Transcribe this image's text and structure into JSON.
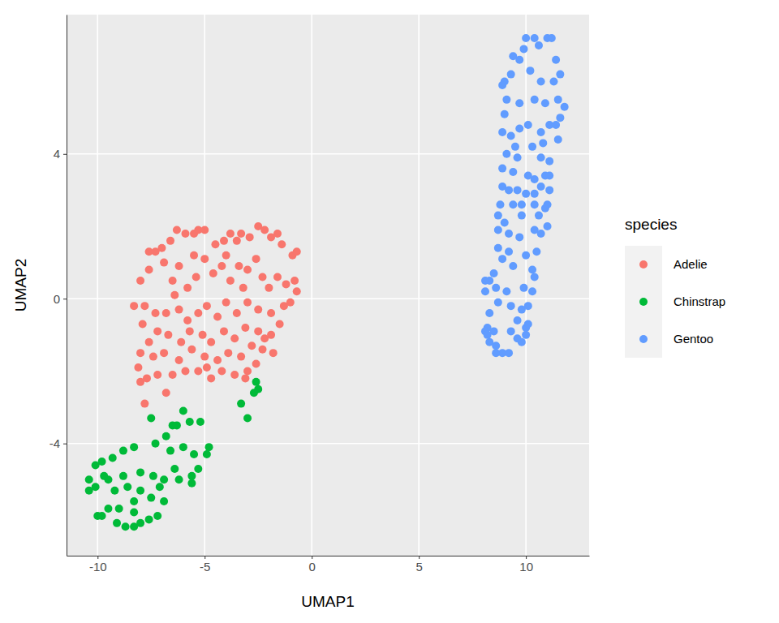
{
  "chart_data": {
    "type": "scatter",
    "x_label": "UMAP1",
    "y_label": "UMAP2",
    "legend_title": "species",
    "legend": "right",
    "grid": true,
    "marker": "circle",
    "xlim": [
      -11.45,
      12.95
    ],
    "ylim": [
      -7.1,
      7.85
    ],
    "xticks": [
      -10,
      -5,
      0,
      5,
      10
    ],
    "yticks": [
      -4,
      0,
      4
    ],
    "series": [
      {
        "name": "Adelie",
        "color": "#F8766D",
        "x": [
          -7.6,
          -7.3,
          -7,
          -6.6,
          -6.3,
          -5.9,
          -5.5,
          -5.3,
          -5,
          -4.5,
          -4.1,
          -3.8,
          -3.5,
          -3.3,
          -2.9,
          -2.5,
          -2.2,
          -1.9,
          -1.6,
          -1.4,
          -0.9,
          -0.7,
          -8,
          -7.8,
          -8.3,
          -7.6,
          -6.9,
          -6.5,
          -6.2,
          -5.8,
          -5.4,
          -5,
          -4.6,
          -4.2,
          -3.8,
          -3.4,
          -3,
          -2.6,
          -2.3,
          -2,
          -1.6,
          -1.2,
          -0.8,
          -0.7,
          -1.3,
          -1.9,
          -2.5,
          -3,
          -3.5,
          -4,
          -4.4,
          -4.9,
          -5.3,
          -5.8,
          -6.2,
          -6.8,
          -7.3,
          -7.9,
          -7.6,
          -7.2,
          -6.7,
          -6.1,
          -5.7,
          -5.1,
          -4.7,
          -4.1,
          -3.6,
          -3.1,
          -2.5,
          -1.9,
          -1.5,
          -1.8,
          -2.3,
          -2.8,
          -3.3,
          -3.9,
          -4.4,
          -5,
          -5.6,
          -6.2,
          -6.9,
          -7.4,
          -8,
          -8.1,
          -7.7,
          -7.2,
          -6.5,
          -5.9,
          -5.3,
          -4.7,
          -4.2,
          -3.6,
          -3,
          -2.6,
          -7.8,
          -8,
          -6.8,
          -4.9,
          -3.1,
          -2.2,
          -1,
          -5.5,
          -4,
          -6.4,
          -3.2
        ],
        "values": [
          1.3,
          1.3,
          1.4,
          1.6,
          1.9,
          1.8,
          1.8,
          1.9,
          1.9,
          1.5,
          1.6,
          1.8,
          1.6,
          1.8,
          1.7,
          2,
          1.9,
          1.7,
          1.8,
          1.5,
          1.2,
          1.3,
          0.5,
          -0.2,
          -0.2,
          0.8,
          1,
          0.5,
          0.9,
          0.3,
          0.6,
          1.1,
          0.7,
          0.9,
          0.5,
          0.9,
          0.8,
          1.1,
          0.6,
          0.3,
          0.6,
          0.4,
          0.5,
          0.2,
          -0.2,
          -0.4,
          -0.3,
          -0.1,
          -0.4,
          -0.1,
          -0.5,
          -0.2,
          -0.4,
          -0.6,
          -0.3,
          -0.4,
          -0.4,
          -0.7,
          -1.2,
          -0.9,
          -1,
          -1.2,
          -0.9,
          -1,
          -1.2,
          -0.9,
          -1.1,
          -0.8,
          -0.9,
          -1,
          -0.7,
          -1.5,
          -1.4,
          -1.3,
          -1.6,
          -1.5,
          -1.7,
          -1.6,
          -1.4,
          -1.7,
          -1.5,
          -1.6,
          -1.5,
          -1.9,
          -2.2,
          -2.1,
          -2.1,
          -2,
          -2,
          -2.2,
          -2,
          -2.1,
          -2,
          -1.8,
          -2.9,
          -2.3,
          -2.6,
          -1.9,
          -2.2,
          -1.1,
          -0.1,
          1.2,
          1.2,
          0.1,
          0.3
        ]
      },
      {
        "name": "Chinstrap",
        "color": "#00BA38",
        "x": [
          -7.5,
          -6.5,
          -6,
          -5.7,
          -5.2,
          -6.8,
          -7.3,
          -6.6,
          -6,
          -5.5,
          -4.9,
          -8.3,
          -8.8,
          -9.3,
          -9.8,
          -10.1,
          -10.4,
          -10.4,
          -10.1,
          -9.5,
          -8.8,
          -8,
          -7.4,
          -6.9,
          -6.4,
          -5.6,
          -5.3,
          -5.6,
          -6.2,
          -7.1,
          -8,
          -8.6,
          -9.2,
          -8.3,
          -7.5,
          -6.9,
          -9,
          -9.5,
          -10,
          -9.8,
          -9.1,
          -8.7,
          -8.3,
          -8,
          -7.6,
          -7.2,
          -3.3,
          -3,
          -2.7,
          -2.5,
          -2.6,
          -4.8,
          -6.3,
          -8.3,
          -9.7
        ],
        "values": [
          -3.3,
          -3.5,
          -3.1,
          -3.4,
          -3.4,
          -3.8,
          -4,
          -4.2,
          -4.1,
          -4.3,
          -4.3,
          -4.1,
          -4.2,
          -4.4,
          -4.5,
          -4.6,
          -5,
          -5.3,
          -5.2,
          -5,
          -4.9,
          -4.8,
          -4.9,
          -5,
          -4.7,
          -4.9,
          -4.7,
          -5.1,
          -5,
          -5.2,
          -5.3,
          -5.2,
          -5.3,
          -5.6,
          -5.5,
          -5.6,
          -5.8,
          -5.8,
          -6,
          -6,
          -6.2,
          -6.3,
          -6.3,
          -6.2,
          -6.1,
          -6,
          -2.9,
          -3.3,
          -2.6,
          -2.5,
          -2.3,
          -4.1,
          -3.5,
          -5.9,
          -4.9
        ]
      },
      {
        "name": "Gentoo",
        "color": "#619CFF",
        "x": [
          10,
          10.4,
          11,
          11.2,
          10.6,
          9.9,
          9.7,
          9.4,
          11.4,
          11.6,
          11.3,
          9.3,
          9,
          8.9,
          10.2,
          10.7,
          9.1,
          9.7,
          10.4,
          10.9,
          11.5,
          11.8,
          11.6,
          9,
          8.9,
          9.3,
          9.7,
          10.1,
          10.7,
          11.1,
          11.4,
          11.5,
          10.3,
          10.8,
          9.5,
          9.1,
          9.6,
          10.7,
          11.1,
          8.9,
          9.4,
          10.1,
          10.4,
          10.9,
          11.1,
          8.9,
          9.2,
          9.6,
          10,
          10.4,
          10.7,
          11.1,
          8.8,
          9.4,
          9.8,
          10.4,
          10.9,
          11,
          8.7,
          9,
          9.8,
          10.6,
          11,
          8.7,
          9.2,
          9.7,
          10.4,
          10.7,
          8.7,
          9.2,
          10,
          10.5,
          8.9,
          9.4,
          10.3,
          8.5,
          8.3,
          8.1,
          8.6,
          9.1,
          9.9,
          10.3,
          8.1,
          8.7,
          9.3,
          9.8,
          10.1,
          8.3,
          8.2,
          8.5,
          9.3,
          10,
          10.1,
          8.1,
          8.3,
          8.6,
          8.9,
          9.2,
          9.8,
          10,
          9.6,
          8.6,
          8.2,
          9.6,
          10.4
        ],
        "values": [
          7.2,
          7.2,
          7.2,
          7.2,
          7,
          6.9,
          6.6,
          6.7,
          6.6,
          6.2,
          6,
          6.2,
          6,
          5.9,
          6.3,
          6,
          5.5,
          5.4,
          5.5,
          5.4,
          5.5,
          5.3,
          5,
          5.1,
          4.6,
          4.5,
          4.7,
          4.8,
          4.6,
          4.8,
          4.8,
          4.4,
          4.2,
          4.3,
          4.2,
          4,
          3.9,
          3.9,
          3.8,
          3.6,
          3.5,
          3.4,
          3.3,
          3.4,
          3.4,
          3.1,
          3,
          3,
          2.9,
          2.9,
          3.1,
          3,
          2.6,
          2.6,
          2.6,
          2.6,
          2.5,
          2.6,
          2.3,
          2.1,
          2.3,
          2.3,
          2,
          1.9,
          1.8,
          1.7,
          1.9,
          1.8,
          1.4,
          1.3,
          1.2,
          1.3,
          1.1,
          0.9,
          0.8,
          0.7,
          0.5,
          0.5,
          0.3,
          0.2,
          0.3,
          0.2,
          0.2,
          -0.1,
          -0.2,
          -0.3,
          -0.2,
          -0.4,
          -0.8,
          -0.9,
          -0.9,
          -0.8,
          -0.7,
          -0.9,
          -1.2,
          -1.3,
          -1.5,
          -1.5,
          -1.2,
          -1,
          -1.1,
          -1.5,
          -1,
          -0.6,
          0.6
        ]
      }
    ]
  }
}
